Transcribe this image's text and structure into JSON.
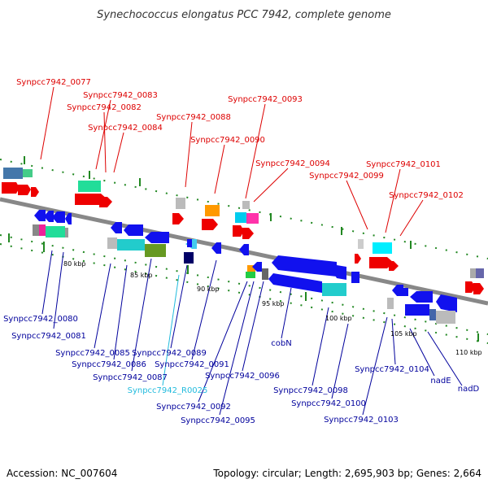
{
  "title": "Synechococcus elongatus PCC 7942, complete genome",
  "accession": "Accession: NC_007604",
  "summary": "Topology: circular; Length: 2,695,903 bp; Genes: 2,664",
  "colors": {
    "forward_label": "#dd0000",
    "reverse_label": "#00009c",
    "rna_label": "#22bbdd",
    "backbone": "#888888",
    "tick": "#228822"
  },
  "tick_labels": [
    "80 kbp",
    "85 kbp",
    "90 kbp",
    "95 kbp",
    "100 kbp",
    "105 kbp",
    "110 kbp"
  ],
  "forward_labels": [
    "Synpcc7942_0077",
    "Synpcc7942_0083",
    "Synpcc7942_0082",
    "Synpcc7942_0084",
    "Synpcc7942_0088",
    "Synpcc7942_0090",
    "Synpcc7942_0093",
    "Synpcc7942_0094",
    "Synpcc7942_0099",
    "Synpcc7942_0101",
    "Synpcc7942_0102"
  ],
  "reverse_labels": [
    "Synpcc7942_0080",
    "Synpcc7942_0081",
    "Synpcc7942_0085",
    "Synpcc7942_0086",
    "Synpcc7942_0087",
    "Synpcc7942_R0025",
    "Synpcc7942_0089",
    "Synpcc7942_0091",
    "Synpcc7942_0092",
    "Synpcc7942_0095",
    "Synpcc7942_0096",
    "cobN",
    "Synpcc7942_0098",
    "Synpcc7942_0100",
    "Synpcc7942_0103",
    "Synpcc7942_0104",
    "nadE",
    "nadD"
  ]
}
